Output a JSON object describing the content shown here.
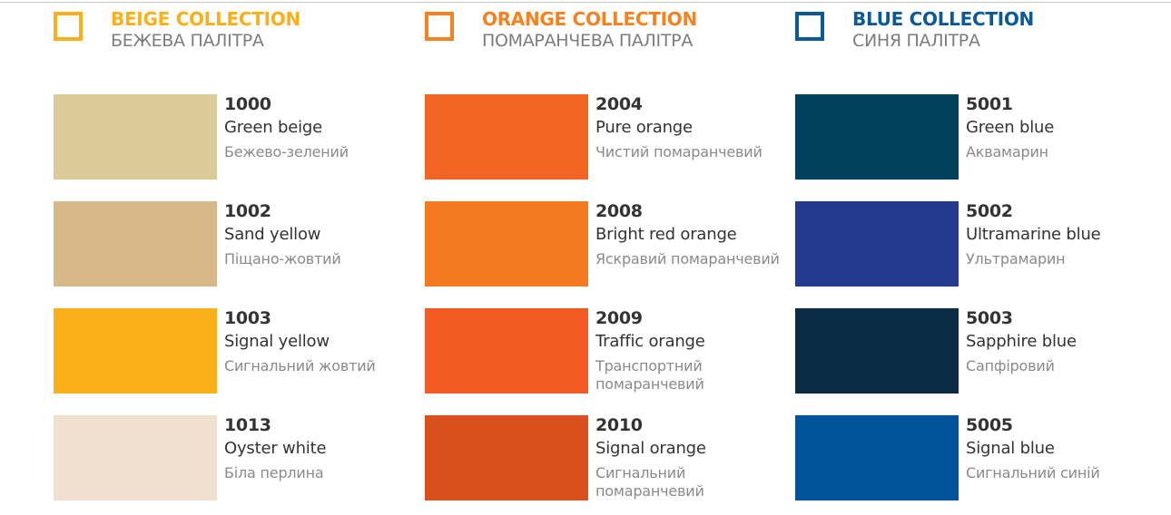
{
  "collections": [
    {
      "title": "BEIGE COLLECTION",
      "subtitle": "БЕЖЕВА ПАЛІТРА",
      "accent": "#fbb019",
      "swatches": [
        {
          "code": "1000",
          "name": "Green beige",
          "name_uk": "Бежево-зелений",
          "color": "#dccb98"
        },
        {
          "code": "1002",
          "name": "Sand yellow",
          "name_uk": "Піщано-жовтий",
          "color": "#d7b987"
        },
        {
          "code": "1003",
          "name": "Signal yellow",
          "name_uk": "Сигнальний жовтий",
          "color": "#fbb019"
        },
        {
          "code": "1013",
          "name": "Oyster white",
          "name_uk": "Біла перлина",
          "color": "#efe1ce"
        }
      ]
    },
    {
      "title": "ORANGE COLLECTION",
      "subtitle": "ПОМАРАНЧЕВА ПАЛІТРА",
      "accent": "#f58220",
      "swatches": [
        {
          "code": "2004",
          "name": "Pure orange",
          "name_uk": "Чистий помаранчевий",
          "color": "#f26522"
        },
        {
          "code": "2008",
          "name": "Bright red orange",
          "name_uk": "Яскравий помаранчевий",
          "color": "#f47920"
        },
        {
          "code": "2009",
          "name": "Traffic orange",
          "name_uk": "Транспортний помаранчевий",
          "color": "#f15a22"
        },
        {
          "code": "2010",
          "name": "Signal orange",
          "name_uk": "Сигнальний помаранчевий",
          "color": "#d9501e"
        }
      ]
    },
    {
      "title": "BLUE COLLECTION",
      "subtitle": "СИНЯ ПАЛІТРА",
      "accent": "#0c5a95",
      "swatches": [
        {
          "code": "5001",
          "name": "Green blue",
          "name_uk": "Аквамарин",
          "color": "#01415e"
        },
        {
          "code": "5002",
          "name": "Ultramarine blue",
          "name_uk": "Ультрамарин",
          "color": "#233a8e"
        },
        {
          "code": "5003",
          "name": "Sapphire blue",
          "name_uk": "Сапфіровий",
          "color": "#0b2c45"
        },
        {
          "code": "5005",
          "name": "Signal blue",
          "name_uk": "Сигнальний синій",
          "color": "#01539a"
        }
      ]
    }
  ]
}
